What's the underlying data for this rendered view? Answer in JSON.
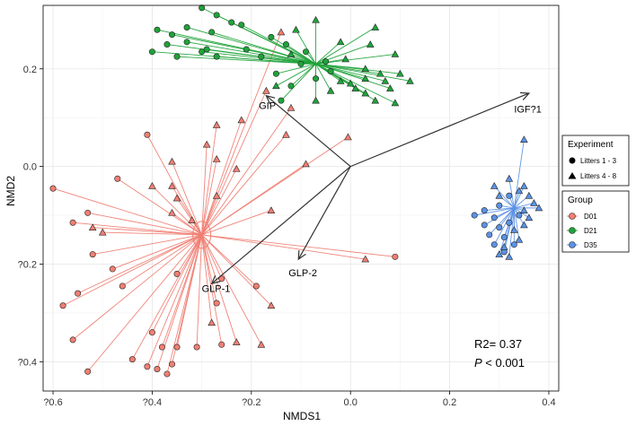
{
  "chart_data": {
    "type": "scatter",
    "xlabel": "NMDS1",
    "ylabel": "NMD2",
    "xlim": [
      -0.62,
      0.42
    ],
    "ylim": [
      -0.46,
      0.33
    ],
    "x_ticks": [
      -0.6,
      -0.4,
      -0.2,
      0.0,
      0.2,
      0.4
    ],
    "x_tick_labels": [
      "?0.6",
      "?0.4",
      "?0.2",
      "0.0",
      "0.2",
      "0.4"
    ],
    "y_ticks": [
      0.2,
      0.0,
      -0.2,
      -0.4
    ],
    "y_tick_labels": [
      "0.2",
      "0.0",
      "?0.2",
      "?0.4"
    ],
    "grid": true,
    "annotations": {
      "r2": "R2= 0.37",
      "p_prefix": "P",
      "p_suffix": " < 0.001"
    },
    "vectors": [
      {
        "label": "IGF?1",
        "x": 0.36,
        "y": 0.15,
        "label_x": 0.33,
        "label_y": 0.11
      },
      {
        "label": "GIP",
        "x": -0.17,
        "y": 0.145,
        "label_x": -0.185,
        "label_y": 0.118
      },
      {
        "label": "GLP-1",
        "x": -0.28,
        "y": -0.24,
        "label_x": -0.3,
        "label_y": -0.257
      },
      {
        "label": "GLP-2",
        "x": -0.105,
        "y": -0.19,
        "label_x": -0.125,
        "label_y": -0.225
      }
    ],
    "legend": [
      {
        "title": "Experiment",
        "position": "right",
        "entries": [
          {
            "label": "Litters 1 - 3",
            "shape": "circle"
          },
          {
            "label": "Litters 4 - 8",
            "shape": "triangle"
          }
        ]
      },
      {
        "title": "Group",
        "position": "right",
        "entries": [
          {
            "label": "D01",
            "color": "#f07f73"
          },
          {
            "label": "D21",
            "color": "#1fa33a"
          },
          {
            "label": "D35",
            "color": "#5b92e5"
          }
        ]
      }
    ],
    "series": [
      {
        "name": "D01",
        "color": "#f07f73",
        "centroid": {
          "x": -0.3,
          "y": -0.14
        },
        "points": [
          {
            "x": -0.6,
            "y": -0.045,
            "shape": "circle"
          },
          {
            "x": -0.47,
            "y": -0.025,
            "shape": "circle"
          },
          {
            "x": -0.41,
            "y": 0.065,
            "shape": "circle"
          },
          {
            "x": -0.53,
            "y": -0.095,
            "shape": "circle"
          },
          {
            "x": -0.56,
            "y": -0.115,
            "shape": "circle"
          },
          {
            "x": -0.52,
            "y": -0.18,
            "shape": "circle"
          },
          {
            "x": -0.48,
            "y": -0.21,
            "shape": "circle"
          },
          {
            "x": -0.46,
            "y": -0.245,
            "shape": "circle"
          },
          {
            "x": -0.55,
            "y": -0.26,
            "shape": "circle"
          },
          {
            "x": -0.58,
            "y": -0.285,
            "shape": "circle"
          },
          {
            "x": -0.56,
            "y": -0.355,
            "shape": "circle"
          },
          {
            "x": -0.53,
            "y": -0.42,
            "shape": "circle"
          },
          {
            "x": -0.44,
            "y": -0.395,
            "shape": "circle"
          },
          {
            "x": -0.41,
            "y": -0.41,
            "shape": "circle"
          },
          {
            "x": -0.39,
            "y": -0.415,
            "shape": "circle"
          },
          {
            "x": -0.37,
            "y": -0.425,
            "shape": "circle"
          },
          {
            "x": -0.4,
            "y": -0.34,
            "shape": "circle"
          },
          {
            "x": -0.38,
            "y": -0.37,
            "shape": "circle"
          },
          {
            "x": -0.35,
            "y": -0.37,
            "shape": "circle"
          },
          {
            "x": -0.31,
            "y": -0.37,
            "shape": "circle"
          },
          {
            "x": -0.36,
            "y": -0.405,
            "shape": "circle"
          },
          {
            "x": -0.26,
            "y": -0.365,
            "shape": "circle"
          },
          {
            "x": -0.27,
            "y": -0.28,
            "shape": "circle"
          },
          {
            "x": -0.35,
            "y": -0.22,
            "shape": "circle"
          },
          {
            "x": -0.26,
            "y": -0.23,
            "shape": "circle"
          },
          {
            "x": -0.19,
            "y": -0.245,
            "shape": "circle"
          },
          {
            "x": 0.09,
            "y": -0.185,
            "shape": "circle"
          },
          {
            "x": -0.14,
            "y": 0.275,
            "shape": "triangle"
          },
          {
            "x": -0.17,
            "y": 0.155,
            "shape": "triangle"
          },
          {
            "x": -0.12,
            "y": 0.12,
            "shape": "triangle"
          },
          {
            "x": -0.22,
            "y": 0.095,
            "shape": "triangle"
          },
          {
            "x": -0.13,
            "y": 0.065,
            "shape": "triangle"
          },
          {
            "x": -0.27,
            "y": 0.085,
            "shape": "triangle"
          },
          {
            "x": -0.005,
            "y": 0.06,
            "shape": "triangle"
          },
          {
            "x": -0.29,
            "y": 0.045,
            "shape": "triangle"
          },
          {
            "x": -0.36,
            "y": 0.01,
            "shape": "triangle"
          },
          {
            "x": -0.27,
            "y": 0.015,
            "shape": "triangle"
          },
          {
            "x": -0.23,
            "y": -0.005,
            "shape": "triangle"
          },
          {
            "x": -0.09,
            "y": 0.005,
            "shape": "triangle"
          },
          {
            "x": -0.4,
            "y": -0.04,
            "shape": "triangle"
          },
          {
            "x": -0.36,
            "y": -0.04,
            "shape": "triangle"
          },
          {
            "x": -0.35,
            "y": -0.065,
            "shape": "triangle"
          },
          {
            "x": -0.27,
            "y": -0.06,
            "shape": "triangle"
          },
          {
            "x": -0.16,
            "y": -0.09,
            "shape": "triangle"
          },
          {
            "x": -0.36,
            "y": -0.095,
            "shape": "triangle"
          },
          {
            "x": -0.52,
            "y": -0.125,
            "shape": "triangle"
          },
          {
            "x": -0.5,
            "y": -0.135,
            "shape": "triangle"
          },
          {
            "x": -0.32,
            "y": -0.11,
            "shape": "triangle"
          },
          {
            "x": 0.03,
            "y": -0.19,
            "shape": "triangle"
          },
          {
            "x": -0.16,
            "y": -0.285,
            "shape": "triangle"
          },
          {
            "x": -0.18,
            "y": -0.365,
            "shape": "triangle"
          },
          {
            "x": -0.23,
            "y": -0.36,
            "shape": "triangle"
          },
          {
            "x": -0.28,
            "y": -0.32,
            "shape": "triangle"
          }
        ]
      },
      {
        "name": "D21",
        "color": "#1fa33a",
        "centroid": {
          "x": -0.07,
          "y": 0.21
        },
        "points": [
          {
            "x": -0.3,
            "y": 0.325,
            "shape": "circle"
          },
          {
            "x": -0.27,
            "y": 0.31,
            "shape": "circle"
          },
          {
            "x": -0.24,
            "y": 0.295,
            "shape": "circle"
          },
          {
            "x": -0.28,
            "y": 0.275,
            "shape": "circle"
          },
          {
            "x": -0.33,
            "y": 0.285,
            "shape": "circle"
          },
          {
            "x": -0.36,
            "y": 0.27,
            "shape": "circle"
          },
          {
            "x": -0.37,
            "y": 0.25,
            "shape": "circle"
          },
          {
            "x": -0.39,
            "y": 0.28,
            "shape": "circle"
          },
          {
            "x": -0.33,
            "y": 0.255,
            "shape": "circle"
          },
          {
            "x": -0.29,
            "y": 0.24,
            "shape": "circle"
          },
          {
            "x": -0.21,
            "y": 0.24,
            "shape": "circle"
          },
          {
            "x": -0.27,
            "y": 0.225,
            "shape": "circle"
          },
          {
            "x": -0.35,
            "y": 0.225,
            "shape": "circle"
          },
          {
            "x": -0.4,
            "y": 0.235,
            "shape": "circle"
          },
          {
            "x": -0.3,
            "y": 0.235,
            "shape": "circle"
          },
          {
            "x": -0.22,
            "y": 0.29,
            "shape": "circle"
          },
          {
            "x": -0.16,
            "y": 0.265,
            "shape": "circle"
          },
          {
            "x": -0.13,
            "y": 0.25,
            "shape": "circle"
          },
          {
            "x": -0.18,
            "y": 0.225,
            "shape": "circle"
          },
          {
            "x": -0.15,
            "y": 0.19,
            "shape": "circle"
          },
          {
            "x": -0.1,
            "y": 0.21,
            "shape": "circle"
          },
          {
            "x": -0.09,
            "y": 0.235,
            "shape": "circle"
          },
          {
            "x": -0.05,
            "y": 0.215,
            "shape": "circle"
          },
          {
            "x": -0.04,
            "y": 0.195,
            "shape": "circle"
          },
          {
            "x": -0.12,
            "y": 0.165,
            "shape": "circle"
          },
          {
            "x": -0.14,
            "y": 0.135,
            "shape": "circle"
          },
          {
            "x": -0.07,
            "y": 0.18,
            "shape": "circle"
          },
          {
            "x": -0.11,
            "y": 0.28,
            "shape": "triangle"
          },
          {
            "x": -0.07,
            "y": 0.3,
            "shape": "triangle"
          },
          {
            "x": 0.05,
            "y": 0.285,
            "shape": "triangle"
          },
          {
            "x": -0.02,
            "y": 0.255,
            "shape": "triangle"
          },
          {
            "x": 0.04,
            "y": 0.25,
            "shape": "triangle"
          },
          {
            "x": 0.09,
            "y": 0.23,
            "shape": "triangle"
          },
          {
            "x": 0.1,
            "y": 0.19,
            "shape": "triangle"
          },
          {
            "x": 0.06,
            "y": 0.19,
            "shape": "triangle"
          },
          {
            "x": 0.03,
            "y": 0.2,
            "shape": "triangle"
          },
          {
            "x": 0.07,
            "y": 0.175,
            "shape": "triangle"
          },
          {
            "x": 0.03,
            "y": 0.18,
            "shape": "triangle"
          },
          {
            "x": 0.0,
            "y": 0.17,
            "shape": "triangle"
          },
          {
            "x": -0.02,
            "y": 0.175,
            "shape": "triangle"
          },
          {
            "x": 0.01,
            "y": 0.16,
            "shape": "triangle"
          },
          {
            "x": -0.04,
            "y": 0.155,
            "shape": "triangle"
          },
          {
            "x": 0.03,
            "y": 0.15,
            "shape": "triangle"
          },
          {
            "x": 0.08,
            "y": 0.16,
            "shape": "triangle"
          },
          {
            "x": 0.12,
            "y": 0.175,
            "shape": "triangle"
          },
          {
            "x": 0.09,
            "y": 0.13,
            "shape": "triangle"
          },
          {
            "x": 0.05,
            "y": 0.135,
            "shape": "triangle"
          },
          {
            "x": -0.07,
            "y": 0.135,
            "shape": "triangle"
          },
          {
            "x": -0.15,
            "y": 0.165,
            "shape": "triangle"
          },
          {
            "x": -0.01,
            "y": 0.22,
            "shape": "triangle"
          },
          {
            "x": -0.12,
            "y": 0.23,
            "shape": "triangle"
          }
        ]
      },
      {
        "name": "D35",
        "color": "#5b92e5",
        "centroid": {
          "x": 0.33,
          "y": -0.085
        },
        "points": [
          {
            "x": 0.25,
            "y": -0.1,
            "shape": "circle"
          },
          {
            "x": 0.27,
            "y": -0.09,
            "shape": "circle"
          },
          {
            "x": 0.3,
            "y": -0.08,
            "shape": "circle"
          },
          {
            "x": 0.29,
            "y": -0.105,
            "shape": "circle"
          },
          {
            "x": 0.27,
            "y": -0.12,
            "shape": "circle"
          },
          {
            "x": 0.3,
            "y": -0.125,
            "shape": "circle"
          },
          {
            "x": 0.32,
            "y": -0.115,
            "shape": "circle"
          },
          {
            "x": 0.28,
            "y": -0.14,
            "shape": "circle"
          },
          {
            "x": 0.31,
            "y": -0.145,
            "shape": "circle"
          },
          {
            "x": 0.29,
            "y": -0.16,
            "shape": "circle"
          },
          {
            "x": 0.31,
            "y": -0.175,
            "shape": "circle"
          },
          {
            "x": 0.33,
            "y": -0.16,
            "shape": "circle"
          },
          {
            "x": 0.34,
            "y": -0.1,
            "shape": "circle"
          },
          {
            "x": 0.32,
            "y": -0.06,
            "shape": "circle"
          },
          {
            "x": 0.35,
            "y": 0.055,
            "shape": "triangle"
          },
          {
            "x": 0.32,
            "y": -0.025,
            "shape": "triangle"
          },
          {
            "x": 0.35,
            "y": -0.04,
            "shape": "triangle"
          },
          {
            "x": 0.34,
            "y": -0.05,
            "shape": "triangle"
          },
          {
            "x": 0.36,
            "y": -0.06,
            "shape": "triangle"
          },
          {
            "x": 0.37,
            "y": -0.075,
            "shape": "triangle"
          },
          {
            "x": 0.38,
            "y": -0.085,
            "shape": "triangle"
          },
          {
            "x": 0.35,
            "y": -0.09,
            "shape": "triangle"
          },
          {
            "x": 0.36,
            "y": -0.105,
            "shape": "triangle"
          },
          {
            "x": 0.35,
            "y": -0.12,
            "shape": "triangle"
          },
          {
            "x": 0.33,
            "y": -0.13,
            "shape": "triangle"
          },
          {
            "x": 0.34,
            "y": -0.15,
            "shape": "triangle"
          },
          {
            "x": 0.31,
            "y": -0.165,
            "shape": "triangle"
          },
          {
            "x": 0.3,
            "y": -0.18,
            "shape": "triangle"
          },
          {
            "x": 0.32,
            "y": -0.185,
            "shape": "triangle"
          },
          {
            "x": 0.29,
            "y": -0.04,
            "shape": "triangle"
          },
          {
            "x": 0.3,
            "y": -0.06,
            "shape": "triangle"
          }
        ]
      }
    ]
  }
}
